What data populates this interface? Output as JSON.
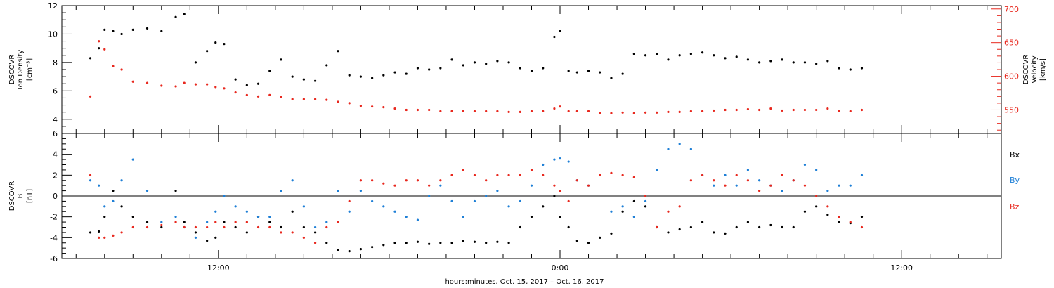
{
  "chart_data": [
    {
      "type": "scatter",
      "panel": "top",
      "ylabel_left": [
        "DSCOVR",
        "Ion Density",
        "[cm⁻³]"
      ],
      "ylabel_right": [
        "DSCOVR",
        "Velocity",
        "[km/s]"
      ],
      "ylim_left": [
        3,
        12
      ],
      "ylim_right": [
        515,
        705
      ],
      "yticks_left": [
        "4",
        "6",
        "8",
        "10",
        "12"
      ],
      "yticks_right": [
        "550",
        "600",
        "650",
        "700"
      ],
      "series": [
        {
          "axis": "left",
          "color": "#000000",
          "x": [
            7.5,
            7.8,
            8.0,
            8.3,
            8.6,
            9.0,
            9.5,
            10.0,
            10.5,
            10.8,
            11.2,
            11.6,
            11.9,
            12.2,
            12.6,
            13.0,
            13.4,
            13.8,
            14.2,
            14.6,
            15.0,
            15.4,
            15.8,
            16.2,
            16.6,
            17.0,
            17.4,
            17.8,
            18.2,
            18.6,
            19.0,
            19.4,
            19.8,
            20.2,
            20.6,
            21.0,
            21.4,
            21.8,
            22.2,
            22.6,
            23.0,
            23.4,
            23.8,
            24.0,
            24.3,
            24.6,
            25.0,
            25.4,
            25.8,
            26.2,
            26.6,
            27.0,
            27.4,
            27.8,
            28.2,
            28.6,
            29.0,
            29.4,
            29.8,
            30.2,
            30.6,
            31.0,
            31.4,
            31.8,
            32.2,
            32.6,
            33.0,
            33.4,
            33.8,
            34.2,
            34.6
          ],
          "y": [
            8.3,
            9.0,
            10.3,
            10.2,
            10.0,
            10.3,
            10.4,
            10.2,
            11.2,
            11.4,
            8.0,
            8.8,
            9.4,
            9.3,
            6.8,
            6.4,
            6.5,
            7.4,
            8.2,
            7.0,
            6.8,
            6.7,
            7.8,
            8.8,
            7.1,
            7.0,
            6.9,
            7.1,
            7.3,
            7.2,
            7.6,
            7.5,
            7.6,
            8.2,
            7.8,
            8.0,
            7.9,
            8.1,
            8.0,
            7.6,
            7.4,
            7.6,
            9.8,
            10.2,
            7.4,
            7.3,
            7.4,
            7.3,
            6.9,
            7.2,
            8.6,
            8.5,
            8.6,
            8.2,
            8.5,
            8.6,
            8.7,
            8.5,
            8.3,
            8.4,
            8.2,
            8.0,
            8.1,
            8.2,
            8.0,
            8.0,
            7.9,
            8.1,
            7.6,
            7.5,
            7.6
          ]
        },
        {
          "axis": "right",
          "color": "#e8281e",
          "x": [
            7.5,
            7.8,
            8.0,
            8.3,
            8.6,
            9.0,
            9.5,
            10.0,
            10.5,
            10.8,
            11.2,
            11.6,
            11.9,
            12.2,
            12.6,
            13.0,
            13.4,
            13.8,
            14.2,
            14.6,
            15.0,
            15.4,
            15.8,
            16.2,
            16.6,
            17.0,
            17.4,
            17.8,
            18.2,
            18.6,
            19.0,
            19.4,
            19.8,
            20.2,
            20.6,
            21.0,
            21.4,
            21.8,
            22.2,
            22.6,
            23.0,
            23.4,
            23.8,
            24.0,
            24.3,
            24.6,
            25.0,
            25.4,
            25.8,
            26.2,
            26.6,
            27.0,
            27.4,
            27.8,
            28.2,
            28.6,
            29.0,
            29.4,
            29.8,
            30.2,
            30.6,
            31.0,
            31.4,
            31.8,
            32.2,
            32.6,
            33.0,
            33.4,
            33.8,
            34.2,
            34.6
          ],
          "y": [
            570,
            652,
            640,
            615,
            610,
            592,
            590,
            586,
            585,
            590,
            588,
            588,
            584,
            582,
            576,
            572,
            570,
            572,
            569,
            566,
            566,
            566,
            565,
            562,
            560,
            556,
            555,
            554,
            552,
            550,
            550,
            550,
            548,
            548,
            548,
            548,
            548,
            548,
            547,
            547,
            548,
            548,
            552,
            555,
            548,
            548,
            548,
            545,
            545,
            546,
            545,
            546,
            546,
            547,
            547,
            548,
            548,
            549,
            550,
            550,
            551,
            550,
            552,
            549,
            550,
            550,
            550,
            552,
            548,
            548,
            550
          ]
        }
      ]
    },
    {
      "type": "scatter",
      "panel": "bottom",
      "ylabel_left": [
        "DSCOVR",
        "B",
        "[nT]"
      ],
      "ylim": [
        -6,
        6
      ],
      "yticks": [
        "-6",
        "-4",
        "-2",
        "0",
        "2",
        "4",
        "6"
      ],
      "legend": [
        "Bx",
        "By",
        "Bz"
      ],
      "series": [
        {
          "name": "Bx",
          "color": "#000000",
          "x": [
            7.5,
            7.8,
            8.0,
            8.3,
            8.6,
            9.0,
            9.5,
            10.0,
            10.5,
            10.8,
            11.2,
            11.6,
            11.9,
            12.2,
            12.6,
            13.0,
            13.4,
            13.8,
            14.2,
            14.6,
            15.0,
            15.4,
            15.8,
            16.2,
            16.6,
            17.0,
            17.4,
            17.8,
            18.2,
            18.6,
            19.0,
            19.4,
            19.8,
            20.2,
            20.6,
            21.0,
            21.4,
            21.8,
            22.2,
            22.6,
            23.0,
            23.4,
            23.8,
            24.0,
            24.3,
            24.6,
            25.0,
            25.4,
            25.8,
            26.2,
            26.6,
            27.0,
            27.4,
            27.8,
            28.2,
            28.6,
            29.0,
            29.4,
            29.8,
            30.2,
            30.6,
            31.0,
            31.4,
            31.8,
            32.2,
            32.6,
            33.0,
            33.4,
            33.8,
            34.2,
            34.6
          ],
          "y": [
            -3.5,
            -3.4,
            -2.0,
            0.5,
            -1.0,
            -2.0,
            -2.5,
            -3.0,
            0.5,
            -2.5,
            -3.5,
            -4.3,
            -4.0,
            -2.5,
            -3.0,
            -3.5,
            -2.0,
            -2.5,
            -3.0,
            -1.5,
            -3.0,
            -3.5,
            -4.5,
            -5.2,
            -5.3,
            -5.1,
            -4.9,
            -4.7,
            -4.5,
            -4.5,
            -4.4,
            -4.6,
            -4.5,
            -4.5,
            -4.3,
            -4.4,
            -4.5,
            -4.4,
            -4.5,
            -3.0,
            -2.0,
            -1.0,
            0.0,
            -2.0,
            -3.0,
            -4.3,
            -4.5,
            -4.0,
            -3.6,
            -1.5,
            -0.5,
            -1.0,
            -3.0,
            -3.5,
            -3.2,
            -3.0,
            -2.5,
            -3.5,
            -3.6,
            -3.0,
            -2.5,
            -3.0,
            -2.8,
            -3.0,
            -3.0,
            -1.5,
            -1.0,
            -1.8,
            -2.5,
            -2.6,
            -2.0
          ]
        },
        {
          "name": "By",
          "color": "#1e7fd6",
          "x": [
            7.5,
            7.8,
            8.0,
            8.3,
            8.6,
            9.0,
            9.5,
            10.0,
            10.5,
            10.8,
            11.2,
            11.6,
            11.9,
            12.2,
            12.6,
            13.0,
            13.4,
            13.8,
            14.2,
            14.6,
            15.0,
            15.4,
            15.8,
            16.2,
            16.6,
            17.0,
            17.4,
            17.8,
            18.2,
            18.6,
            19.0,
            19.4,
            19.8,
            20.2,
            20.6,
            21.0,
            21.4,
            21.8,
            22.2,
            22.6,
            23.0,
            23.4,
            23.8,
            24.0,
            24.3,
            24.6,
            25.0,
            25.4,
            25.8,
            26.2,
            26.6,
            27.0,
            27.4,
            27.8,
            28.2,
            28.6,
            29.0,
            29.4,
            29.8,
            30.2,
            30.6,
            31.0,
            31.4,
            31.8,
            32.2,
            32.6,
            33.0,
            33.4,
            33.8,
            34.2,
            34.6
          ],
          "y": [
            1.5,
            1.0,
            -1.0,
            -0.5,
            1.5,
            3.5,
            0.5,
            -2.5,
            -2.0,
            -3.0,
            -4.0,
            -2.5,
            -1.5,
            0.0,
            -1.0,
            -1.5,
            -2.0,
            -2.0,
            0.5,
            1.5,
            -1.0,
            -3.0,
            -2.5,
            0.5,
            -1.5,
            0.5,
            -0.5,
            -1.0,
            -1.5,
            -2.0,
            -2.3,
            0.0,
            1.0,
            -0.5,
            -2.0,
            -0.5,
            0.0,
            0.5,
            -1.0,
            -0.5,
            1.0,
            3.0,
            3.5,
            3.6,
            3.3,
            1.5,
            1.0,
            2.0,
            -1.5,
            -1.0,
            -2.0,
            -0.5,
            2.5,
            4.5,
            5.0,
            4.5,
            2.0,
            1.0,
            2.0,
            1.0,
            2.5,
            1.5,
            1.0,
            0.5,
            1.5,
            3.0,
            2.5,
            0.5,
            1.0,
            1.0,
            2.0
          ]
        },
        {
          "name": "Bz",
          "color": "#e8281e",
          "x": [
            7.5,
            7.8,
            8.0,
            8.3,
            8.6,
            9.0,
            9.5,
            10.0,
            10.5,
            10.8,
            11.2,
            11.6,
            11.9,
            12.2,
            12.6,
            13.0,
            13.4,
            13.8,
            14.2,
            14.6,
            15.0,
            15.4,
            15.8,
            16.2,
            16.6,
            17.0,
            17.4,
            17.8,
            18.2,
            18.6,
            19.0,
            19.4,
            19.8,
            20.2,
            20.6,
            21.0,
            21.4,
            21.8,
            22.2,
            22.6,
            23.0,
            23.4,
            23.8,
            24.0,
            24.3,
            24.6,
            25.0,
            25.4,
            25.8,
            26.2,
            26.6,
            27.0,
            27.4,
            27.8,
            28.2,
            28.6,
            29.0,
            29.4,
            29.8,
            30.2,
            30.6,
            31.0,
            31.4,
            31.8,
            32.2,
            32.6,
            33.0,
            33.4,
            33.8,
            34.2,
            34.6
          ],
          "y": [
            2.0,
            -4.0,
            -4.0,
            -3.8,
            -3.5,
            -3.0,
            -3.0,
            -2.8,
            -2.5,
            -3.0,
            -3.0,
            -3.0,
            -2.5,
            -3.0,
            -2.5,
            -2.5,
            -3.0,
            -3.0,
            -3.5,
            -3.5,
            -4.0,
            -4.5,
            -3.0,
            -2.5,
            -0.5,
            1.5,
            1.5,
            1.2,
            1.0,
            1.5,
            1.5,
            1.0,
            1.5,
            2.0,
            2.5,
            2.0,
            1.5,
            2.0,
            2.0,
            2.0,
            2.5,
            2.0,
            1.0,
            0.5,
            -0.5,
            1.5,
            1.0,
            2.0,
            2.2,
            2.0,
            1.8,
            0.0,
            -3.0,
            -1.5,
            -1.0,
            1.5,
            2.0,
            1.5,
            1.0,
            2.0,
            1.5,
            0.5,
            1.0,
            2.0,
            1.5,
            1.0,
            0.0,
            -1.0,
            -2.0,
            -2.5,
            -3.0
          ]
        }
      ]
    }
  ],
  "xaxis": {
    "range_hours": [
      6.5,
      39.5
    ],
    "ticks": [
      {
        "hour": 12,
        "label": "12:00"
      },
      {
        "hour": 24,
        "label": "0:00"
      },
      {
        "hour": 36,
        "label": "12:00"
      }
    ],
    "title": "hours:minutes, Oct. 15, 2017 – Oct. 16, 2017"
  }
}
